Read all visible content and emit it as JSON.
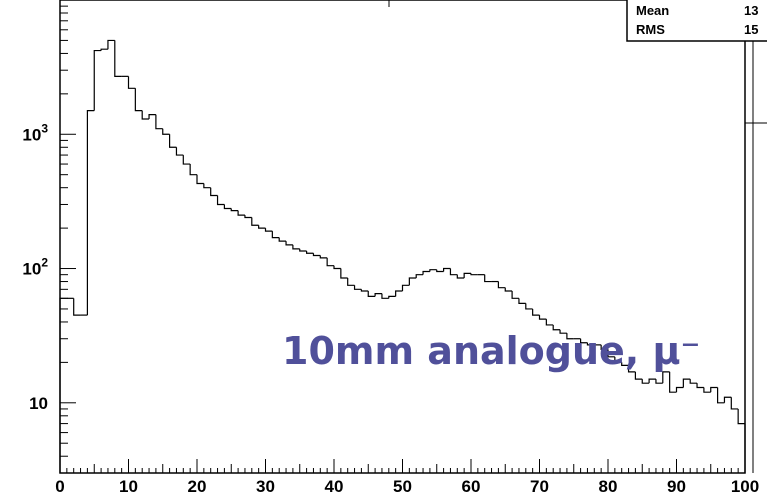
{
  "chart_data": {
    "type": "bar",
    "style": "step-histogram",
    "log_scale_y": true,
    "xlim": [
      0,
      100
    ],
    "ylim": [
      3,
      10000
    ],
    "grid": false,
    "bin_width": 1,
    "x_tick_labels": [
      "0",
      "10",
      "20",
      "30",
      "40",
      "50",
      "60",
      "70",
      "80",
      "90",
      "100"
    ],
    "y_tick_labels": [
      {
        "value": 10,
        "base": "10",
        "exp": ""
      },
      {
        "value": 100,
        "base": "10",
        "exp": "2"
      },
      {
        "value": 1000,
        "base": "10",
        "exp": "3"
      }
    ],
    "stats_box": [
      {
        "label": "Mean",
        "value": "13"
      },
      {
        "label": "RMS",
        "value": "15"
      }
    ],
    "annotation": "10mm analogue, μ⁻",
    "values": [
      60,
      60,
      45,
      45,
      1500,
      4200,
      4300,
      5000,
      2700,
      2700,
      2200,
      1500,
      1300,
      1400,
      1100,
      1000,
      800,
      700,
      600,
      500,
      430,
      400,
      350,
      300,
      280,
      270,
      250,
      240,
      210,
      200,
      190,
      170,
      160,
      150,
      140,
      135,
      130,
      125,
      120,
      105,
      100,
      85,
      75,
      70,
      68,
      62,
      65,
      60,
      62,
      68,
      75,
      85,
      90,
      95,
      98,
      95,
      100,
      90,
      85,
      92,
      90,
      90,
      80,
      80,
      72,
      68,
      60,
      55,
      50,
      45,
      42,
      38,
      35,
      33,
      30,
      30,
      28,
      27,
      27,
      25,
      22,
      20,
      19,
      17,
      15,
      14,
      15,
      14,
      17,
      12,
      13,
      15,
      14,
      13,
      12,
      13,
      10,
      11,
      9,
      7
    ]
  }
}
